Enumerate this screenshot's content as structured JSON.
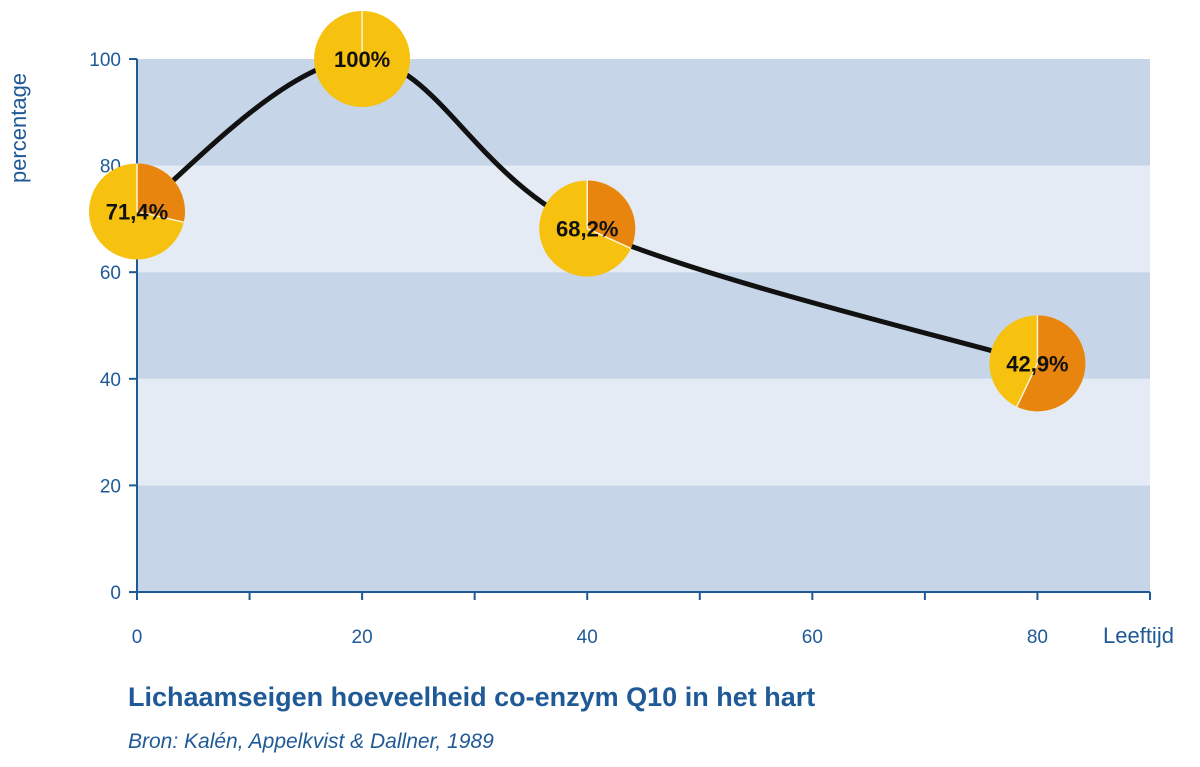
{
  "colors": {
    "band_dark": "#c6d5e8",
    "band_light": "#e4ebf4",
    "axis": "#1f5a96",
    "text": "#1f5a96",
    "line": "#111111",
    "marker_yellow": "#f6c10f",
    "marker_orange": "#e8850f"
  },
  "chart_data": {
    "type": "line",
    "ylabel": "percentage",
    "xlabel": "Leeftijd",
    "xlim": [
      0,
      90
    ],
    "ylim": [
      0,
      100
    ],
    "x_ticks": [
      0,
      20,
      40,
      60,
      80
    ],
    "y_ticks": [
      0,
      20,
      40,
      60,
      80,
      100
    ],
    "grid": "horizontal alternating bands",
    "points": [
      {
        "x": 0,
        "y": 71.4,
        "label": "71,4%"
      },
      {
        "x": 20,
        "y": 100,
        "label": "100%"
      },
      {
        "x": 40,
        "y": 68.2,
        "label": "68,2%"
      },
      {
        "x": 80,
        "y": 42.9,
        "label": "42,9%"
      }
    ],
    "title": "Lichaamseigen hoeveelheid co-enzym Q10 in het hart",
    "source": "Bron: Kalén, Appelkvist & Dallner, 1989"
  }
}
